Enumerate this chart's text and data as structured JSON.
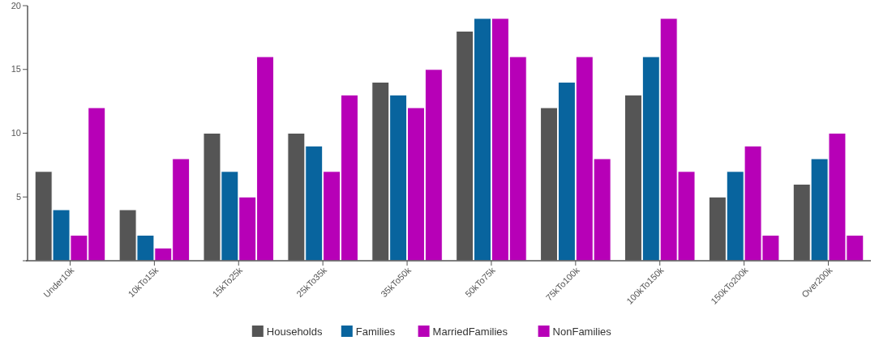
{
  "chart_data": {
    "type": "bar",
    "categories": [
      "Under10k",
      "10kTo15k",
      "15kTo25k",
      "25kTo35k",
      "35kTo50k",
      "50kTo75k",
      "75kTo100k",
      "100kTo150k",
      "150kTo200k",
      "Over200k"
    ],
    "series": [
      {
        "name": "Households",
        "color": "#555555",
        "values": [
          7,
          4,
          10,
          10,
          14,
          18,
          12,
          13,
          5,
          6
        ]
      },
      {
        "name": "Families",
        "color": "#08649e",
        "values": [
          4,
          2,
          7,
          9,
          13,
          19,
          14,
          16,
          7,
          8
        ]
      },
      {
        "name": "MarriedFamilies",
        "color": "#b700b7",
        "values": [
          2,
          1,
          5,
          7,
          12,
          19,
          16,
          19,
          9,
          10
        ]
      },
      {
        "name": "NonFamilies",
        "color": "#b700b7",
        "values": [
          12,
          8,
          16,
          13,
          15,
          16,
          8,
          7,
          2,
          2
        ]
      }
    ],
    "ylim": [
      0,
      20
    ],
    "yticks": [
      {
        "value": 0,
        "label": null
      },
      5,
      10,
      15,
      20
    ],
    "legend": "bottom"
  }
}
